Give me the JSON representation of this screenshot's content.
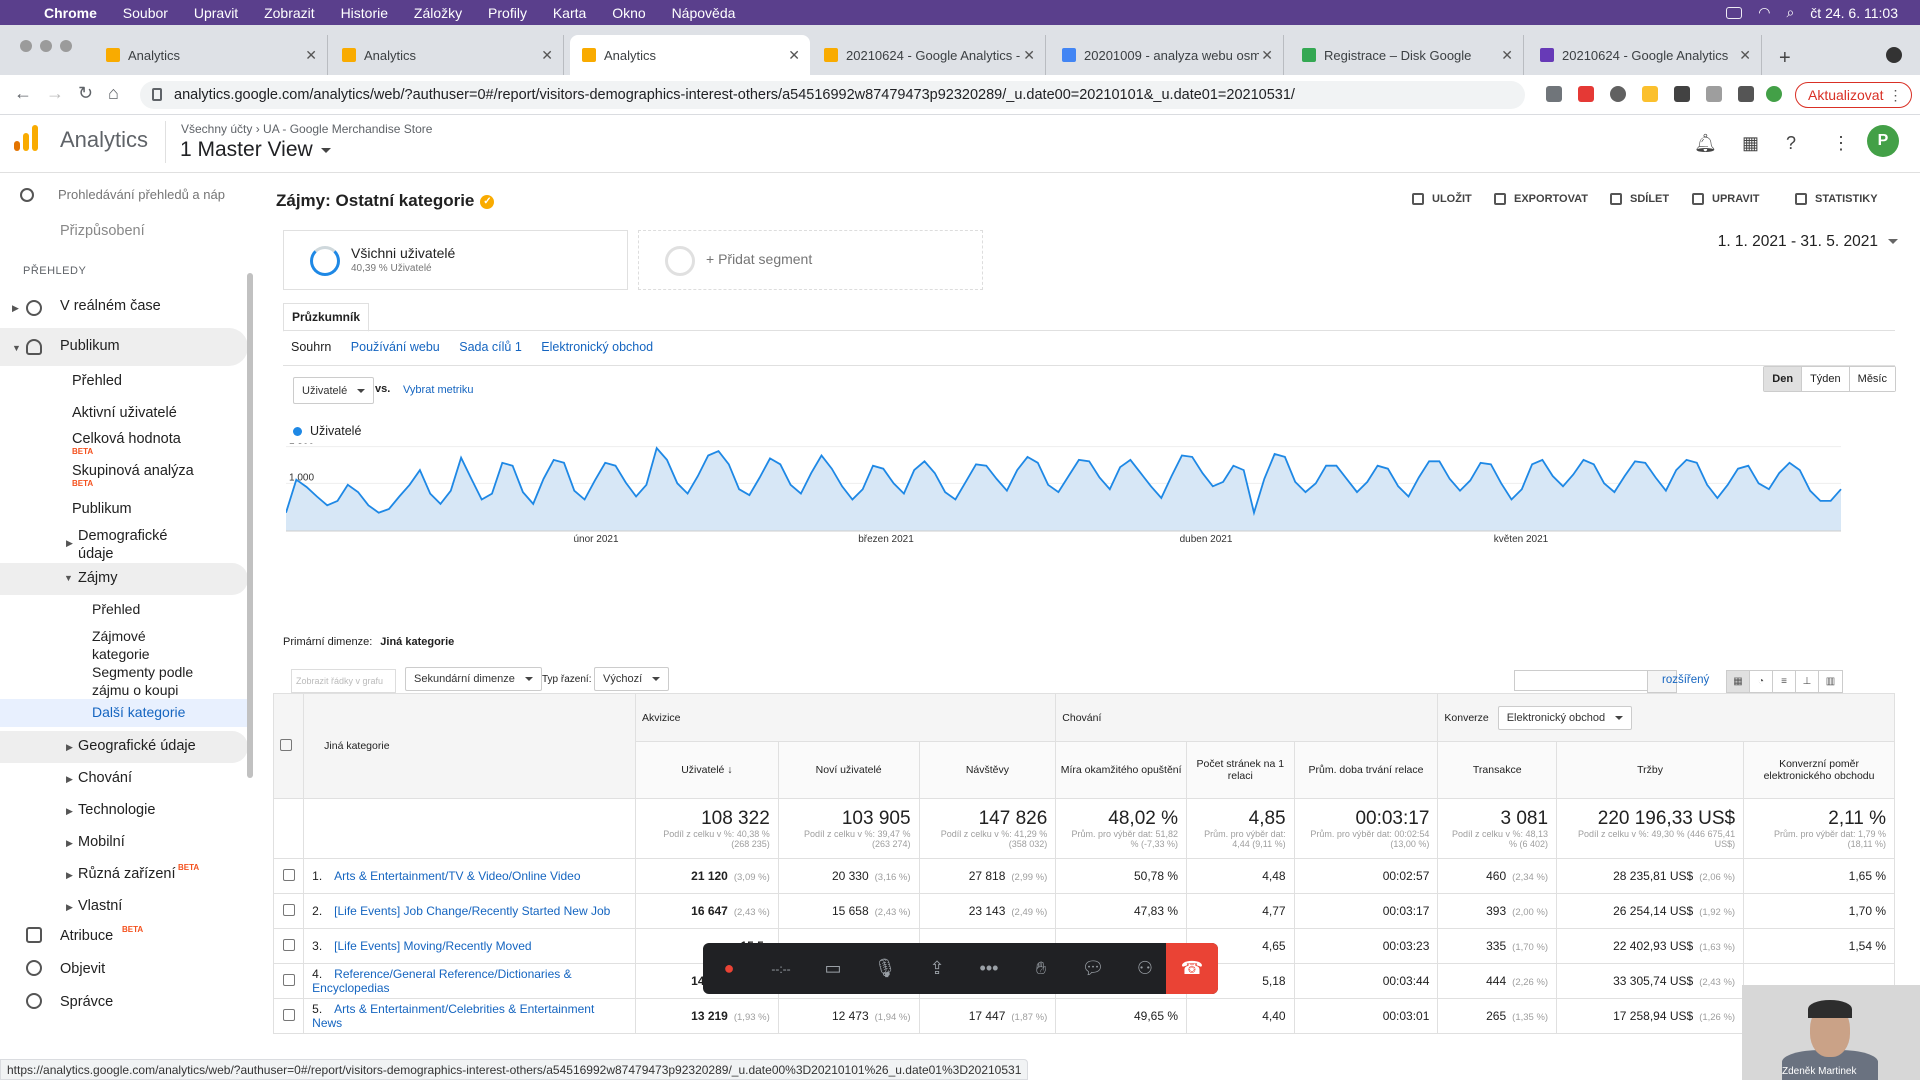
{
  "mac_menu": {
    "app": "Chrome",
    "items": [
      "Soubor",
      "Upravit",
      "Zobrazit",
      "Historie",
      "Záložky",
      "Profily",
      "Karta",
      "Okno",
      "Nápověda"
    ],
    "clock": "čt 24. 6.  11:03"
  },
  "tabs": [
    {
      "title": "Analytics",
      "icon_color": "#f9ab00"
    },
    {
      "title": "Analytics",
      "icon_color": "#f9ab00"
    },
    {
      "title": "Analytics",
      "icon_color": "#f9ab00",
      "active": true
    },
    {
      "title": "20210624 - Google Analytics -",
      "icon_color": "#f9ab00"
    },
    {
      "title": "20201009 - analyza webu osm",
      "icon_color": "#4285f4"
    },
    {
      "title": "Registrace – Disk Google",
      "icon_color": "#34a853"
    },
    {
      "title": "20210624 - Google Analytics",
      "icon_color": "#673ab7"
    }
  ],
  "url": "analytics.google.com/analytics/web/?authuser=0#/report/visitors-demographics-interest-others/a54516992w87479473p92320289/_u.date00=20210101&_u.date01=20210531/",
  "update_label": "Aktualizovat",
  "ga": {
    "product": "Analytics",
    "breadcrumb": "Všechny účty › UA - Google Merchandise Store",
    "view": "1 Master View"
  },
  "sidebar": {
    "search_placeholder": "Prohledávání přehledů a náp",
    "partial_item": "Přizpůsobení",
    "section": "PŘEHLEDY",
    "realtime": "V reálném čase",
    "audience": "Publikum",
    "audience_items": [
      "Přehled",
      "Aktivní uživatelé",
      "Celková hodnota",
      "Skupinová analýza",
      "Publikum"
    ],
    "beta": "BETA",
    "demographics": "Demografické údaje",
    "interests": "Zájmy",
    "interest_items": [
      "Přehled",
      "Zájmové kategorie",
      "Segmenty podle zájmu o koupi",
      "Další kategorie"
    ],
    "more": [
      "Geografické údaje",
      "Chování",
      "Technologie",
      "Mobilní",
      "Různá zařízení",
      "Vlastní"
    ],
    "attribution": "Atribuce",
    "discover": "Objevit",
    "admin": "Správce",
    "user": "Zdeněk Martinek"
  },
  "report": {
    "title": "Zájmy: Ostatní kategorie",
    "actions": [
      "ULOŽIT",
      "EXPORTOVAT",
      "SDÍLET",
      "UPRAVIT",
      "STATISTIKY"
    ],
    "segment": {
      "name": "Všichni uživatelé",
      "sub": "40,39 % Uživatelé",
      "add": "+ Přidat segment"
    },
    "date_range": "1. 1. 2021 - 31. 5. 2021",
    "explorer": "Průzkumník",
    "subtabs": [
      "Souhrn",
      "Používání webu",
      "Sada cílů 1",
      "Elektronický obchod"
    ],
    "metric": "Uživatelé",
    "vs": "vs.",
    "choose_metric": "Vybrat metriku",
    "granularity": [
      "Den",
      "Týden",
      "Měsíc"
    ],
    "primary_dim_label": "Primární dimenze:",
    "primary_dim": "Jiná kategorie",
    "plot_rows": "Zobrazit řádky v grafu",
    "secondary_dim": "Sekundární dimenze",
    "sort_label": "Typ řazení:",
    "sort": "Výchozí",
    "advanced": "rozšířený"
  },
  "chart_data": {
    "type": "area",
    "series": [
      {
        "name": "Uživatelé",
        "color": "#1e88e5",
        "values": [
          600,
          1050,
          950,
          820,
          700,
          760,
          980,
          880,
          700,
          600,
          650,
          820,
          980,
          1180,
          860,
          720,
          900,
          1350,
          1060,
          780,
          860,
          1280,
          1240,
          880,
          720,
          1060,
          1320,
          1280,
          900,
          780,
          1040,
          1280,
          1240,
          1010,
          820,
          980,
          1480,
          1320,
          1000,
          860,
          1100,
          1380,
          1440,
          1260,
          920,
          840,
          1080,
          1340,
          1260,
          980,
          860,
          1140,
          1380,
          1200,
          960,
          780,
          920,
          1240,
          1200,
          1000,
          860,
          1180,
          1300,
          1140,
          880,
          780,
          1020,
          1260,
          1240,
          1060,
          900,
          1180,
          1360,
          1280,
          980,
          880,
          1100,
          1320,
          1300,
          1080,
          920,
          1220,
          1320,
          1140,
          960,
          800,
          1100,
          1380,
          1360,
          1140,
          960,
          1020,
          1240,
          1180,
          600,
          1060,
          1400,
          1360,
          1020,
          880,
          1000,
          1240,
          1240,
          1060,
          880,
          1020,
          1240,
          1200,
          960,
          820,
          1080,
          1300,
          1300,
          1060,
          900,
          1040,
          1280,
          1260,
          1000,
          780,
          920,
          1260,
          1320,
          1100,
          960,
          1120,
          1320,
          1260,
          1000,
          880,
          1100,
          1300,
          1280,
          1080,
          900,
          1180,
          1320,
          1280,
          980,
          800,
          980,
          1200,
          1240,
          1000,
          920,
          1140,
          1280,
          1180,
          900,
          760,
          760,
          920
        ]
      }
    ],
    "x_labels": [
      "únor 2021",
      "březen 2021",
      "duben 2021",
      "květen 2021"
    ],
    "y_ticks": [
      500,
      1000,
      1500
    ],
    "ylim": [
      350,
      1550
    ]
  },
  "table": {
    "groups": [
      "Akvizice",
      "Chování",
      "Konverze"
    ],
    "conv_select": "Elektronický obchod",
    "dim_header": "Jiná kategorie",
    "columns": [
      "Uživatelé",
      "Noví uživatelé",
      "Návštěvy",
      "Míra okamžitého opuštění",
      "Počet stránek na 1 relaci",
      "Prům. doba trvání relace",
      "Transakce",
      "Tržby",
      "Konverzní poměr elektronického obchodu"
    ],
    "totals": [
      {
        "v": "108 322",
        "s": "Podíl z celku v %: 40,38 % (268 235)"
      },
      {
        "v": "103 905",
        "s": "Podíl z celku v %: 39,47 % (263 274)"
      },
      {
        "v": "147 826",
        "s": "Podíl z celku v %: 41,29 % (358 032)"
      },
      {
        "v": "48,02 %",
        "s": "Prům. pro výběr dat: 51,82 % (-7,33 %)"
      },
      {
        "v": "4,85",
        "s": "Prům. pro výběr dat: 4,44 (9,11 %)"
      },
      {
        "v": "00:03:17",
        "s": "Prům. pro výběr dat: 00:02:54 (13,00 %)"
      },
      {
        "v": "3 081",
        "s": "Podíl z celku v %: 48,13 % (6 402)"
      },
      {
        "v": "220 196,33 US$",
        "s": "Podíl z celku v %: 49,30 % (446 675,41 US$)"
      },
      {
        "v": "2,11 %",
        "s": "Prům. pro výběr dat: 1,79 % (18,11 %)"
      }
    ],
    "rows": [
      {
        "n": "1.",
        "name": "Arts & Entertainment/TV & Video/Online Video",
        "users": "21 120",
        "up": "(3,09 %)",
        "new": "20 330",
        "np": "(3,16 %)",
        "sess": "27 818",
        "sp": "(2,99 %)",
        "bounce": "50,78 %",
        "pages": "4,48",
        "dur": "00:02:57",
        "tr": "460",
        "tp": "(2,34 %)",
        "rev": "28 235,81 US$",
        "rp": "(2,06 %)",
        "conv": "1,65 %"
      },
      {
        "n": "2.",
        "name": "[Life Events] Job Change/Recently Started New Job",
        "users": "16 647",
        "up": "(2,43 %)",
        "new": "15 658",
        "np": "(2,43 %)",
        "sess": "23 143",
        "sp": "(2,49 %)",
        "bounce": "47,83 %",
        "pages": "4,77",
        "dur": "00:03:17",
        "tr": "393",
        "tp": "(2,00 %)",
        "rev": "26 254,14 US$",
        "rp": "(1,92 %)",
        "conv": "1,70 %"
      },
      {
        "n": "3.",
        "name": "[Life Events] Moving/Recently Moved",
        "users": "15 5",
        "up": "",
        "new": "",
        "np": "",
        "sess": "",
        "sp": "",
        "bounce": "",
        "pages": "4,65",
        "dur": "00:03:23",
        "tr": "335",
        "tp": "(1,70 %)",
        "rev": "22 402,93 US$",
        "rp": "(1,63 %)",
        "conv": "1,54 %"
      },
      {
        "n": "4.",
        "name": "Reference/General Reference/Dictionaries & Encyclopedias",
        "users": "14 245",
        "up": "(2,08 %)",
        "new": "13 203",
        "np": "(2,05 %)",
        "sess": "20 383",
        "sp": "(2,19 %)",
        "bounce": "45,45 %",
        "pages": "5,18",
        "dur": "00:03:44",
        "tr": "444",
        "tp": "(2,26 %)",
        "rev": "33 305,74 US$",
        "rp": "(2,43 %)",
        "conv": ""
      },
      {
        "n": "5.",
        "name": "Arts & Entertainment/Celebrities & Entertainment News",
        "users": "13 219",
        "up": "(1,93 %)",
        "new": "12 473",
        "np": "(1,94 %)",
        "sess": "17 447",
        "sp": "(1,87 %)",
        "bounce": "49,65 %",
        "pages": "4,40",
        "dur": "00:03:01",
        "tr": "265",
        "tp": "(1,35 %)",
        "rev": "17 258,94 US$",
        "rp": "(1,26 %)",
        "conv": ""
      }
    ]
  },
  "video_name": "Zdeněk Martinek",
  "status_url": "https://analytics.google.com/analytics/web/?authuser=0#/report/visitors-demographics-interest-others/a54516992w87479473p92320289/_u.date00%3D20210101%26_u.date01%3D20210531"
}
